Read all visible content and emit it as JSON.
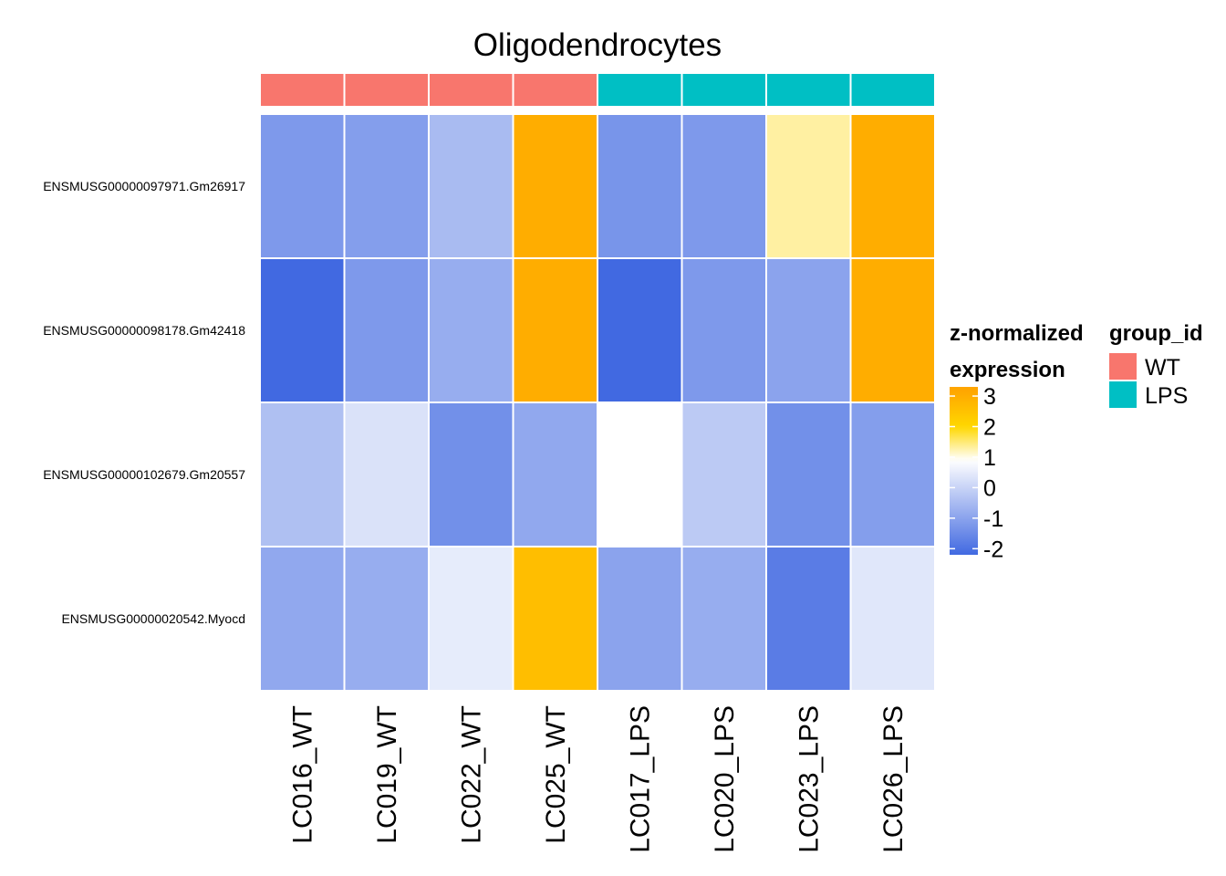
{
  "chart_data": {
    "type": "heatmap",
    "title": "Oligodendrocytes",
    "columns": [
      "LC016_WT",
      "LC019_WT",
      "LC022_WT",
      "LC025_WT",
      "LC017_LPS",
      "LC020_LPS",
      "LC023_LPS",
      "LC026_LPS"
    ],
    "column_groups": [
      "WT",
      "WT",
      "WT",
      "WT",
      "LPS",
      "LPS",
      "LPS",
      "LPS"
    ],
    "rows": [
      "ENSMUSG00000097971.Gm26917",
      "ENSMUSG00000098178.Gm42418",
      "ENSMUSG00000102679.Gm20557",
      "ENSMUSG00000020542.Myocd"
    ],
    "values": [
      [
        -1.2,
        -1.1,
        -0.5,
        3.0,
        -1.3,
        -1.2,
        1.3,
        3.0
      ],
      [
        -2.2,
        -1.2,
        -0.8,
        3.0,
        -2.2,
        -1.2,
        -1.0,
        3.0
      ],
      [
        -0.4,
        0.3,
        -1.4,
        -0.9,
        0.9,
        -0.2,
        -1.4,
        -1.1
      ],
      [
        -0.9,
        -0.8,
        0.5,
        2.6,
        -1.0,
        -0.8,
        -1.8,
        0.4
      ]
    ],
    "color_scale": {
      "stops": [
        {
          "value": -2.2,
          "color": "#4169E1"
        },
        {
          "value": 0.9,
          "color": "#FFFFFF"
        },
        {
          "value": 2.0,
          "color": "#FFD700"
        },
        {
          "value": 3.2,
          "color": "#FFA500"
        }
      ]
    },
    "legend": {
      "colorbar_title_line1": "z-normalized",
      "colorbar_title_line2": "expression",
      "colorbar_ticks": [
        "3",
        "2",
        "1",
        "0",
        "-1",
        "-2"
      ],
      "colorbar_tick_values": [
        3,
        2,
        1,
        0,
        -1,
        -2
      ],
      "colorbar_range": [
        -2.2,
        3.3
      ],
      "group_title": "group_id",
      "groups": [
        {
          "name": "WT",
          "color": "#F8766D"
        },
        {
          "name": "LPS",
          "color": "#00BFC4"
        }
      ]
    }
  }
}
